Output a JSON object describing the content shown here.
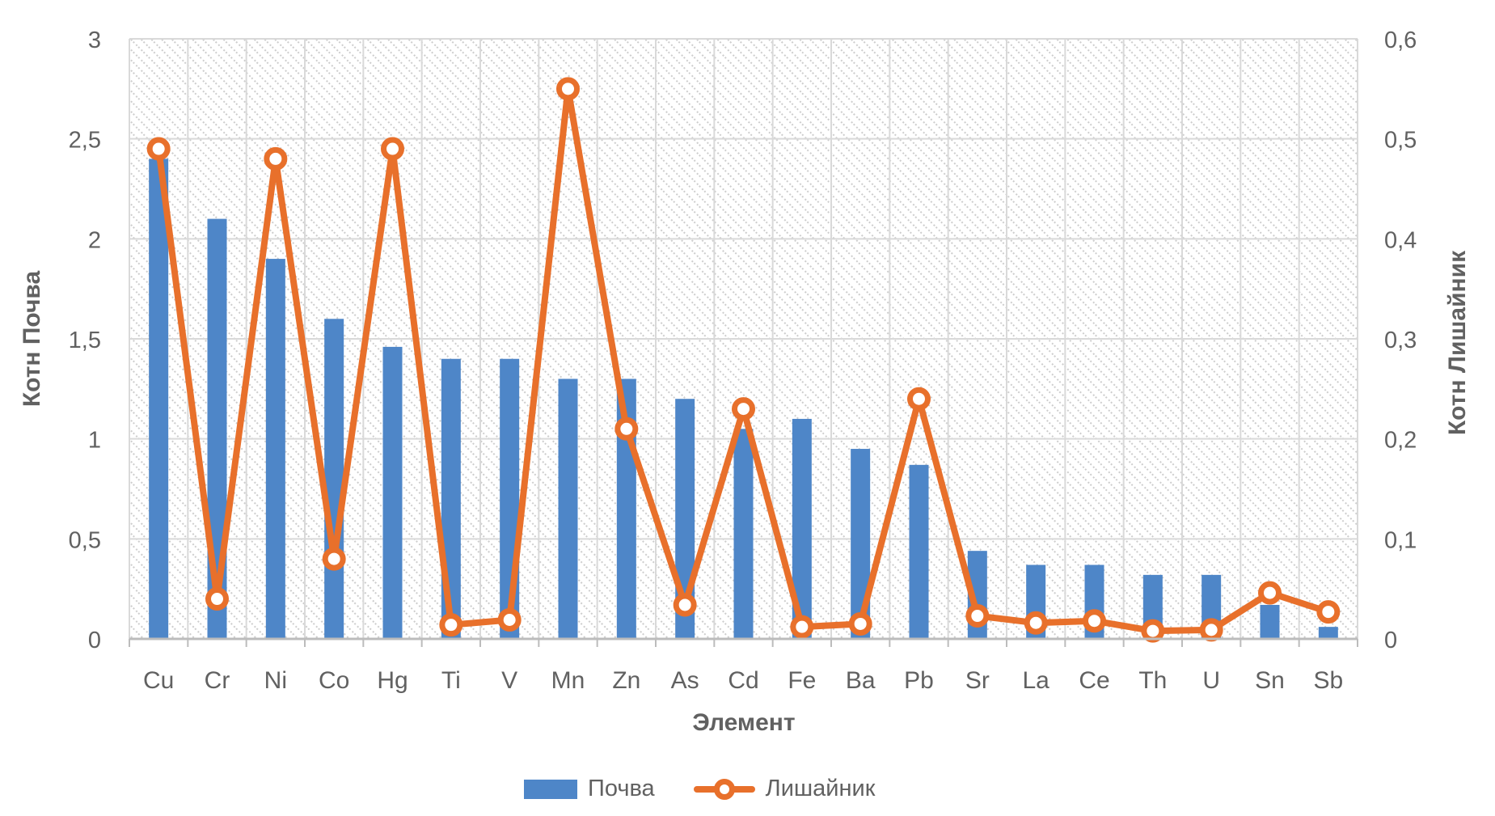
{
  "chart_data": {
    "type": "bar+line",
    "categories": [
      "Cu",
      "Cr",
      "Ni",
      "Co",
      "Hg",
      "Ti",
      "V",
      "Mn",
      "Zn",
      "As",
      "Cd",
      "Fe",
      "Ba",
      "Pb",
      "Sr",
      "La",
      "Ce",
      "Th",
      "U",
      "Sn",
      "Sb"
    ],
    "series": [
      {
        "name": "Почва",
        "type": "bar",
        "axis": "left",
        "color": "#4E86C8",
        "values": [
          2.4,
          2.1,
          1.9,
          1.6,
          1.46,
          1.4,
          1.4,
          1.3,
          1.3,
          1.2,
          1.05,
          1.1,
          0.95,
          0.87,
          0.44,
          0.37,
          0.37,
          0.32,
          0.32,
          0.17,
          0.06
        ]
      },
      {
        "name": "Лишайник",
        "type": "line",
        "axis": "right",
        "color": "#E8702B",
        "marker": "circle",
        "values": [
          0.49,
          0.04,
          0.48,
          0.08,
          0.49,
          0.014,
          0.019,
          0.55,
          0.21,
          0.034,
          0.23,
          0.012,
          0.015,
          0.24,
          0.023,
          0.016,
          0.018,
          0.008,
          0.009,
          0.046,
          0.027
        ]
      }
    ],
    "xlabel": "Элемент",
    "ylabel_left": "Котн Почва",
    "ylabel_right": "Котн Лишайник",
    "left_axis": {
      "min": 0,
      "max": 3,
      "tick_labels": [
        "3",
        "2,5",
        "2",
        "1,5",
        "1",
        "0,5",
        "0"
      ],
      "tick_values": [
        3,
        2.5,
        2,
        1.5,
        1,
        0.5,
        0
      ]
    },
    "right_axis": {
      "min": 0,
      "max": 0.6,
      "tick_labels": [
        "0,6",
        "0,5",
        "0,4",
        "0,3",
        "0,2",
        "0,1",
        "0"
      ],
      "tick_values": [
        0.6,
        0.5,
        0.4,
        0.3,
        0.2,
        0.1,
        0
      ]
    },
    "grid": true,
    "plot_background": "light-diagonal-hatch",
    "legend_position": "bottom",
    "colors": {
      "gridline": "#d9d9d9",
      "axis_line": "#bcbcbc",
      "hatch": "#cdcdcd",
      "text": "#616161",
      "marker_fill": "#ffffff"
    }
  }
}
